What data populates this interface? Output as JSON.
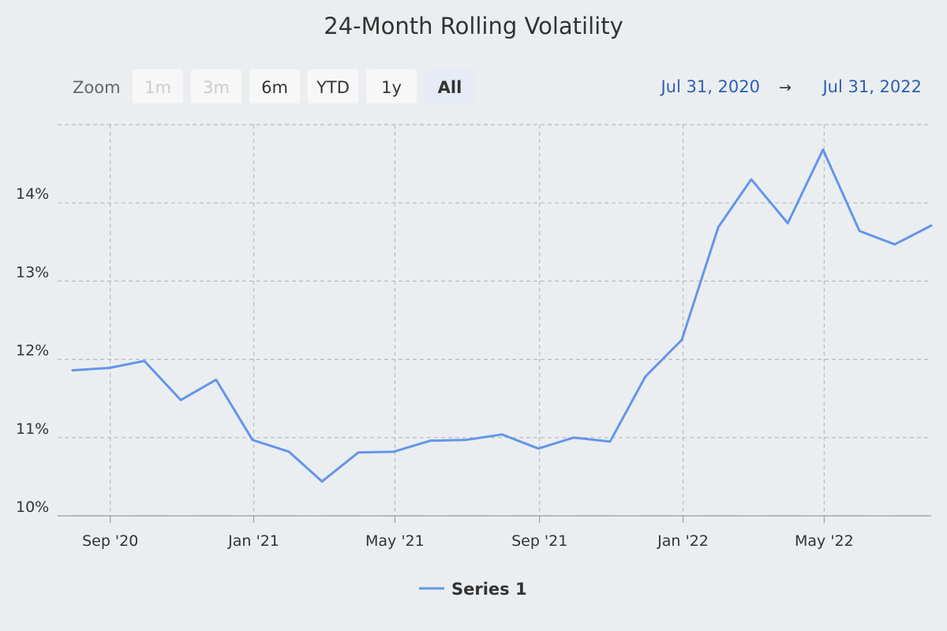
{
  "chart_data": {
    "type": "line",
    "title": "24-Month Rolling Volatility",
    "xlabel": "",
    "ylabel": "",
    "x_ticks": [
      "Sep '20",
      "Jan '21",
      "May '21",
      "Sep '21",
      "Jan '22",
      "May '22"
    ],
    "x_tick_dates": [
      "2020-09-01",
      "2021-01-01",
      "2021-05-01",
      "2021-09-01",
      "2022-01-01",
      "2022-05-01"
    ],
    "y_ticks": [
      "10%",
      "11%",
      "12%",
      "13%",
      "14%"
    ],
    "y_tick_values": [
      10,
      11,
      12,
      13,
      14
    ],
    "ylim": [
      10,
      15
    ],
    "xlim": [
      "2020-07-31",
      "2022-07-31"
    ],
    "grid": true,
    "legend_position": "bottom-center",
    "series": [
      {
        "name": "Series 1",
        "color": "#6495ed",
        "points": [
          {
            "x": "2020-07-31",
            "y": 11.86
          },
          {
            "x": "2020-08-31",
            "y": 11.89
          },
          {
            "x": "2020-09-30",
            "y": 11.98
          },
          {
            "x": "2020-10-31",
            "y": 11.48
          },
          {
            "x": "2020-11-30",
            "y": 11.74
          },
          {
            "x": "2020-12-31",
            "y": 10.97
          },
          {
            "x": "2021-01-31",
            "y": 10.82
          },
          {
            "x": "2021-02-28",
            "y": 10.44
          },
          {
            "x": "2021-03-31",
            "y": 10.81
          },
          {
            "x": "2021-04-30",
            "y": 10.82
          },
          {
            "x": "2021-05-31",
            "y": 10.96
          },
          {
            "x": "2021-06-30",
            "y": 10.97
          },
          {
            "x": "2021-07-31",
            "y": 11.04
          },
          {
            "x": "2021-08-31",
            "y": 10.86
          },
          {
            "x": "2021-09-30",
            "y": 11.0
          },
          {
            "x": "2021-10-31",
            "y": 10.95
          },
          {
            "x": "2021-11-30",
            "y": 11.78
          },
          {
            "x": "2021-12-31",
            "y": 12.25
          },
          {
            "x": "2022-01-31",
            "y": 13.69
          },
          {
            "x": "2022-02-28",
            "y": 14.3
          },
          {
            "x": "2022-03-31",
            "y": 13.74
          },
          {
            "x": "2022-04-30",
            "y": 14.68
          },
          {
            "x": "2022-05-31",
            "y": 13.64
          },
          {
            "x": "2022-06-30",
            "y": 13.47
          },
          {
            "x": "2022-07-31",
            "y": 13.71
          }
        ]
      }
    ]
  },
  "range_selector": {
    "zoom_label": "Zoom",
    "buttons": [
      {
        "label": "1m",
        "state": "disabled"
      },
      {
        "label": "3m",
        "state": "disabled"
      },
      {
        "label": "6m",
        "state": "normal"
      },
      {
        "label": "YTD",
        "state": "normal"
      },
      {
        "label": "1y",
        "state": "normal"
      },
      {
        "label": "All",
        "state": "selected"
      }
    ],
    "from": "Jul 31, 2020",
    "arrow": "→",
    "to": "Jul 31, 2022"
  },
  "colors": {
    "background": "#ebeef0",
    "grid": "#b8bcc0",
    "axis_text": "#333333",
    "title": "#333333",
    "link": "#2d5eb4",
    "button_bg": "#f7f7f7",
    "button_selected_bg": "#e6ebf5",
    "button_disabled_text": "#cccccc"
  }
}
